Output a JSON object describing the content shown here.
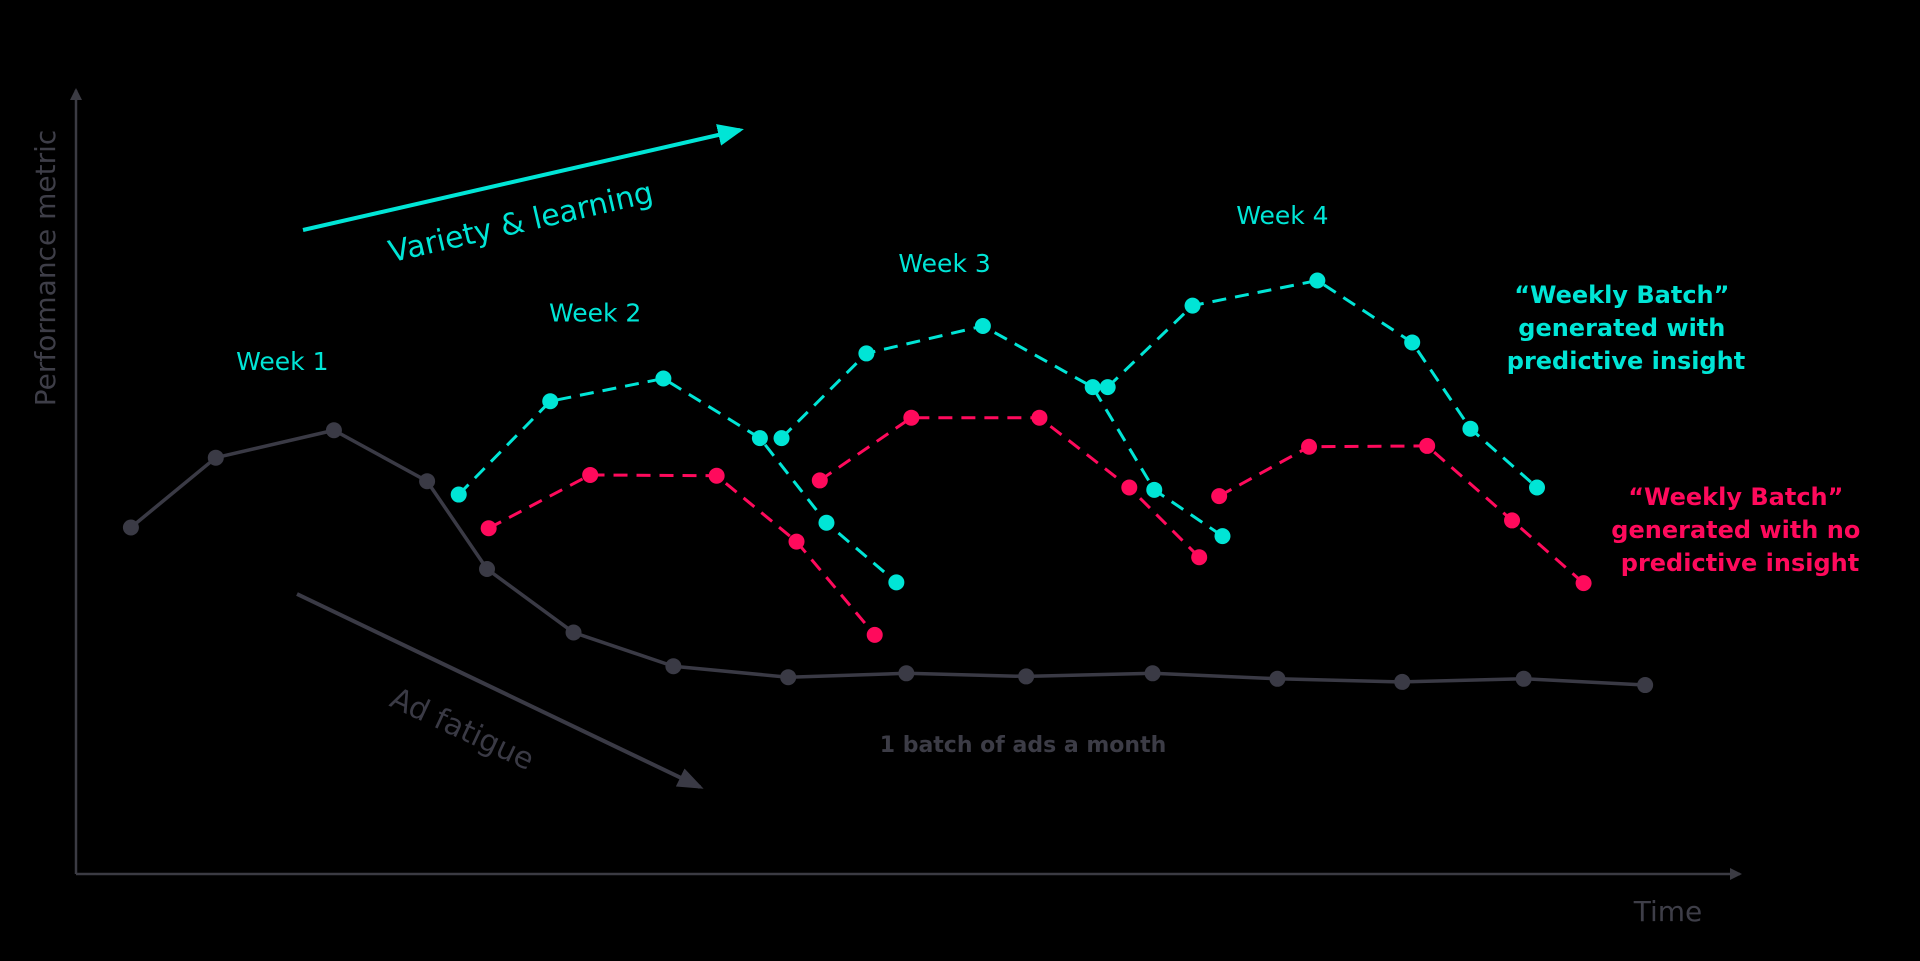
{
  "chart_data": {
    "type": "line",
    "xlabel": "Time",
    "ylabel": "Performance metric",
    "xlim": [
      0,
      100
    ],
    "ylim": [
      0,
      100
    ],
    "grid": false,
    "colors": {
      "axis": "#3b3b43",
      "monthly": "#3a3a45",
      "predictive": "#00e5d6",
      "no_predictive": "#ff0a5c",
      "axis_text": "#3e3e48"
    },
    "series": [
      {
        "key": "monthly",
        "style": "solid",
        "label": "1 batch of ads a month",
        "points": [
          [
            3.3,
            44.2
          ],
          [
            8.4,
            53.1
          ],
          [
            15.5,
            56.6
          ],
          [
            21.1,
            50.1
          ],
          [
            24.7,
            38.9
          ],
          [
            29.9,
            30.8
          ],
          [
            35.9,
            26.5
          ],
          [
            42.8,
            25.1
          ],
          [
            49.9,
            25.6
          ],
          [
            57.1,
            25.2
          ],
          [
            64.7,
            25.6
          ],
          [
            72.2,
            24.9
          ],
          [
            79.7,
            24.5
          ],
          [
            87.0,
            24.9
          ],
          [
            94.3,
            24.1
          ]
        ]
      },
      {
        "key": "predictive",
        "style": "dashed",
        "segments": [
          [
            [
              23.0,
              48.4
            ],
            [
              28.5,
              60.3
            ],
            [
              35.3,
              63.2
            ],
            [
              41.1,
              55.6
            ],
            [
              45.1,
              44.8
            ],
            [
              49.3,
              37.2
            ]
          ],
          [
            [
              42.4,
              55.6
            ],
            [
              47.5,
              66.4
            ],
            [
              54.5,
              69.9
            ],
            [
              61.1,
              62.1
            ],
            [
              64.8,
              49.0
            ],
            [
              68.9,
              43.1
            ]
          ],
          [
            [
              62.0,
              62.1
            ],
            [
              67.1,
              72.5
            ],
            [
              74.6,
              75.7
            ],
            [
              80.3,
              67.8
            ],
            [
              83.8,
              56.8
            ],
            [
              87.8,
              49.3
            ]
          ]
        ]
      },
      {
        "key": "no_predictive",
        "style": "dashed",
        "segments": [
          [
            [
              24.8,
              44.1
            ],
            [
              30.9,
              50.9
            ],
            [
              38.5,
              50.8
            ],
            [
              43.3,
              42.4
            ],
            [
              48.0,
              30.5
            ]
          ],
          [
            [
              44.7,
              50.2
            ],
            [
              50.2,
              58.2
            ],
            [
              57.9,
              58.2
            ],
            [
              63.3,
              49.3
            ],
            [
              67.5,
              40.4
            ]
          ],
          [
            [
              68.7,
              48.2
            ],
            [
              74.1,
              54.5
            ],
            [
              81.2,
              54.6
            ],
            [
              86.3,
              45.1
            ],
            [
              90.6,
              37.1
            ]
          ]
        ]
      }
    ],
    "week_labels": [
      {
        "text": "Week 1",
        "x": 12.4,
        "y": 64.3
      },
      {
        "text": "Week 2",
        "x": 31.2,
        "y": 70.5
      },
      {
        "text": "Week 3",
        "x": 52.2,
        "y": 76.8
      },
      {
        "text": "Week 4",
        "x": 72.5,
        "y": 82.9
      }
    ],
    "annotations": {
      "variety": "Variety & learning",
      "fatigue": "Ad fatigue",
      "monthly_batch": "1 batch of ads a month",
      "predictive_legend": [
        "“Weekly Batch”",
        "generated with",
        "predictive insight"
      ],
      "no_predictive_legend": [
        "“Weekly Batch”",
        "generated with no",
        "predictive insight"
      ]
    }
  }
}
